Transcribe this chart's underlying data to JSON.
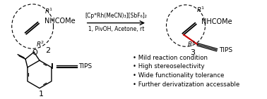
{
  "bg_color": "#ffffff",
  "arrow_text_top": "[Cp*Rh(MeCN)₃][SbF₆]₂",
  "arrow_text_bottom": "1, PivOH, Acetone, rt",
  "bullet_points": [
    "Mild reaction condition",
    "High stereoselectivity",
    "Wide functionality tolerance",
    "Further derivatization accessable"
  ],
  "compound2_label": "2",
  "compound3_label": "3",
  "compound1_label": "1",
  "nhcome": "NHCOMe",
  "tips": "TIPS",
  "r1": "R",
  "r2": "R",
  "sup1": "1",
  "sup2": "2"
}
